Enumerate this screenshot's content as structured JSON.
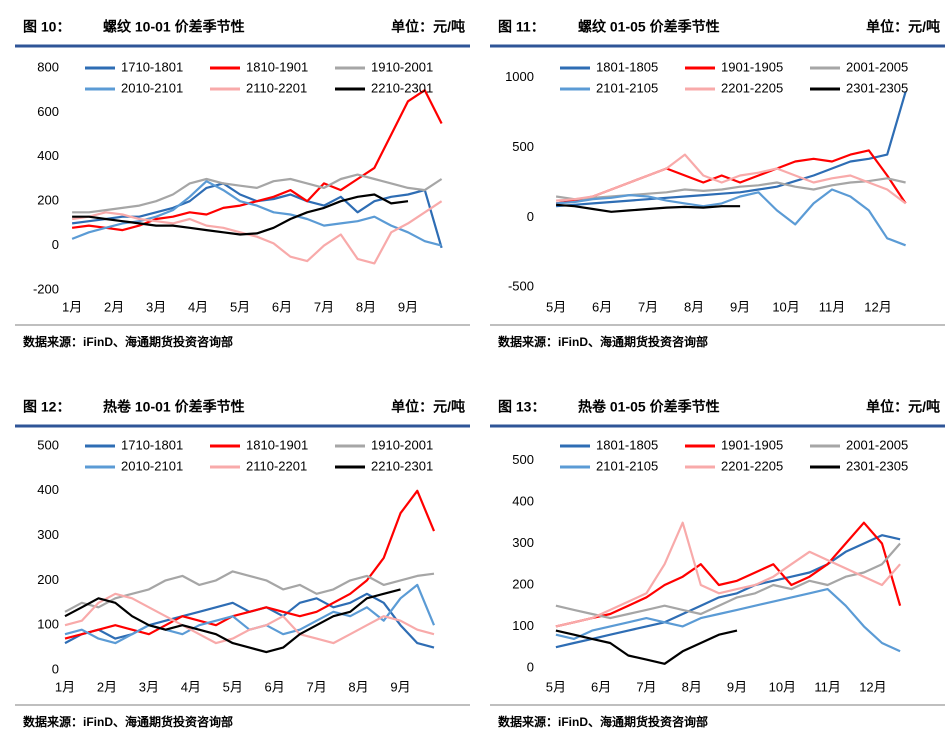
{
  "chart_data": [
    {
      "type": "line",
      "figure_label": "图 10：",
      "title": "螺纹 10-01 价差季节性",
      "unit": "单位：元/吨",
      "source": "数据来源：iFinD、海通期货投资咨询部",
      "x": [
        0,
        0.4,
        0.8,
        1.2,
        1.6,
        2,
        2.4,
        2.8,
        3.2,
        3.6,
        4,
        4.4,
        4.8,
        5.2,
        5.6,
        6,
        6.4,
        6.8,
        7.2,
        7.6,
        8,
        8.4,
        8.8
      ],
      "xlim": [
        -0.17,
        9.12
      ],
      "xticks": [
        {
          "value": 0,
          "label": "1月"
        },
        {
          "value": 1,
          "label": "2月"
        },
        {
          "value": 2,
          "label": "3月"
        },
        {
          "value": 3,
          "label": "4月"
        },
        {
          "value": 4,
          "label": "5月"
        },
        {
          "value": 5,
          "label": "6月"
        },
        {
          "value": 6,
          "label": "7月"
        },
        {
          "value": 7,
          "label": "8月"
        },
        {
          "value": 8,
          "label": "9月"
        }
      ],
      "ylim": [
        -200,
        800
      ],
      "yticks": [
        -200,
        0,
        200,
        400,
        600,
        800
      ],
      "series": [
        {
          "name": "1710-1801",
          "color": "#2e6db4",
          "values": [
            100,
            110,
            120,
            130,
            130,
            150,
            170,
            200,
            260,
            280,
            230,
            200,
            210,
            230,
            200,
            180,
            220,
            150,
            200,
            220,
            230,
            250,
            -10
          ]
        },
        {
          "name": "1810-1901",
          "color": "#ff0000",
          "values": [
            80,
            90,
            80,
            70,
            90,
            120,
            130,
            150,
            140,
            170,
            180,
            200,
            220,
            250,
            200,
            280,
            250,
            300,
            350,
            500,
            650,
            700,
            550
          ]
        },
        {
          "name": "1910-2001",
          "color": "#a6a6a6",
          "values": [
            150,
            150,
            160,
            170,
            180,
            200,
            230,
            280,
            300,
            280,
            270,
            260,
            290,
            300,
            280,
            260,
            300,
            320,
            300,
            280,
            260,
            250,
            300
          ]
        },
        {
          "name": "2010-2101",
          "color": "#5b9bd5",
          "values": [
            30,
            60,
            80,
            100,
            110,
            130,
            160,
            220,
            290,
            250,
            200,
            180,
            150,
            140,
            120,
            90,
            100,
            110,
            130,
            90,
            60,
            20,
            0
          ]
        },
        {
          "name": "2110-2201",
          "color": "#f8aaaa",
          "values": [
            120,
            130,
            150,
            140,
            120,
            110,
            100,
            120,
            90,
            80,
            60,
            40,
            10,
            -50,
            -70,
            0,
            50,
            -60,
            -80,
            60,
            100,
            150,
            200
          ]
        },
        {
          "name": "2210-2301",
          "color": "#000000",
          "values": [
            130,
            130,
            120,
            110,
            100,
            90,
            90,
            80,
            70,
            60,
            50,
            55,
            80,
            120,
            150,
            170,
            200,
            220,
            230,
            190,
            200,
            null,
            null
          ]
        }
      ]
    },
    {
      "type": "line",
      "figure_label": "图 11：",
      "title": "螺纹 01-05 价差季节性",
      "unit": "单位：元/吨",
      "source": "数据来源：iFinD、海通期货投资咨询部",
      "x": [
        0,
        0.4,
        0.8,
        1.2,
        1.6,
        2,
        2.4,
        2.8,
        3.2,
        3.6,
        4,
        4.4,
        4.8,
        5.2,
        5.6,
        6,
        6.4,
        6.8,
        7.2,
        7.6
      ],
      "xlim": [
        -0.35,
        8.13
      ],
      "xticks": [
        {
          "value": 0,
          "label": "5月"
        },
        {
          "value": 1,
          "label": "6月"
        },
        {
          "value": 2,
          "label": "7月"
        },
        {
          "value": 3,
          "label": "8月"
        },
        {
          "value": 4,
          "label": "9月"
        },
        {
          "value": 5,
          "label": "10月"
        },
        {
          "value": 6,
          "label": "11月"
        },
        {
          "value": 7,
          "label": "12月"
        }
      ],
      "ylim": [
        -520,
        1070
      ],
      "yticks": [
        -500,
        0,
        500,
        1000
      ],
      "series": [
        {
          "name": "1801-1805",
          "color": "#2e6db4",
          "values": [
            80,
            90,
            100,
            110,
            120,
            130,
            140,
            150,
            160,
            170,
            180,
            200,
            220,
            260,
            300,
            350,
            400,
            420,
            450,
            900
          ]
        },
        {
          "name": "1901-1905",
          "color": "#ff0000",
          "values": [
            100,
            120,
            150,
            200,
            250,
            300,
            350,
            300,
            250,
            300,
            250,
            300,
            350,
            400,
            420,
            400,
            450,
            480,
            300,
            100
          ]
        },
        {
          "name": "2001-2005",
          "color": "#a6a6a6",
          "values": [
            150,
            130,
            140,
            150,
            160,
            170,
            180,
            200,
            190,
            200,
            220,
            230,
            250,
            220,
            200,
            230,
            250,
            260,
            280,
            250
          ]
        },
        {
          "name": "2101-2105",
          "color": "#5b9bd5",
          "values": [
            100,
            110,
            130,
            140,
            160,
            150,
            120,
            100,
            80,
            100,
            150,
            180,
            50,
            -50,
            100,
            200,
            150,
            50,
            -150,
            -200
          ]
        },
        {
          "name": "2201-2205",
          "color": "#f8aaaa",
          "values": [
            120,
            130,
            150,
            200,
            250,
            300,
            350,
            450,
            300,
            250,
            300,
            320,
            350,
            300,
            250,
            280,
            300,
            250,
            200,
            100
          ]
        },
        {
          "name": "2301-2305",
          "color": "#000000",
          "values": [
            90,
            80,
            60,
            40,
            50,
            60,
            70,
            75,
            70,
            80,
            80,
            null,
            null,
            null,
            null,
            null,
            null,
            null,
            null,
            null
          ]
        }
      ]
    },
    {
      "type": "line",
      "figure_label": "图 12：",
      "title": "热卷 10-01 价差季节性",
      "unit": "单位：元/吨",
      "source": "数据来源：iFinD、海通期货投资咨询部",
      "x": [
        0,
        0.4,
        0.8,
        1.2,
        1.6,
        2,
        2.4,
        2.8,
        3.2,
        3.6,
        4,
        4.4,
        4.8,
        5.2,
        5.6,
        6,
        6.4,
        6.8,
        7.2,
        7.6,
        8,
        8.4,
        8.8
      ],
      "xlim": [
        0,
        9.3
      ],
      "xticks": [
        {
          "value": 0,
          "label": "1月"
        },
        {
          "value": 1,
          "label": "2月"
        },
        {
          "value": 2,
          "label": "3月"
        },
        {
          "value": 3,
          "label": "4月"
        },
        {
          "value": 4,
          "label": "5月"
        },
        {
          "value": 5,
          "label": "6月"
        },
        {
          "value": 6,
          "label": "7月"
        },
        {
          "value": 7,
          "label": "8月"
        },
        {
          "value": 8,
          "label": "9月"
        }
      ],
      "ylim": [
        0,
        500
      ],
      "yticks": [
        0,
        100,
        200,
        300,
        400,
        500
      ],
      "series": [
        {
          "name": "1710-1801",
          "color": "#2e6db4",
          "values": [
            60,
            80,
            90,
            70,
            80,
            100,
            110,
            120,
            130,
            140,
            150,
            130,
            140,
            120,
            150,
            160,
            140,
            150,
            170,
            150,
            100,
            60,
            50
          ]
        },
        {
          "name": "1810-1901",
          "color": "#ff0000",
          "values": [
            70,
            80,
            90,
            100,
            90,
            80,
            100,
            120,
            110,
            100,
            120,
            130,
            140,
            130,
            120,
            130,
            150,
            170,
            200,
            250,
            350,
            400,
            310
          ]
        },
        {
          "name": "1910-2001",
          "color": "#a6a6a6",
          "values": [
            130,
            150,
            140,
            160,
            170,
            180,
            200,
            210,
            190,
            200,
            220,
            210,
            200,
            180,
            190,
            170,
            180,
            200,
            210,
            190,
            200,
            210,
            215
          ]
        },
        {
          "name": "2010-2101",
          "color": "#5b9bd5",
          "values": [
            80,
            90,
            70,
            60,
            80,
            100,
            90,
            80,
            100,
            110,
            120,
            90,
            100,
            80,
            90,
            110,
            130,
            120,
            140,
            110,
            160,
            190,
            100
          ]
        },
        {
          "name": "2110-2201",
          "color": "#f8aaaa",
          "values": [
            100,
            110,
            150,
            170,
            160,
            140,
            120,
            100,
            80,
            60,
            70,
            90,
            100,
            120,
            80,
            70,
            60,
            80,
            100,
            120,
            110,
            90,
            80
          ]
        },
        {
          "name": "2210-2301",
          "color": "#000000",
          "values": [
            120,
            140,
            160,
            150,
            120,
            100,
            90,
            100,
            90,
            80,
            60,
            50,
            40,
            50,
            80,
            100,
            120,
            130,
            160,
            170,
            180,
            null,
            null
          ]
        }
      ]
    },
    {
      "type": "line",
      "figure_label": "图 13：",
      "title": "热卷 01-05 价差季节性",
      "unit": "单位：元/吨",
      "source": "数据来源：iFinD、海通期货投资咨询部",
      "x": [
        0,
        0.4,
        0.8,
        1.2,
        1.6,
        2,
        2.4,
        2.8,
        3.2,
        3.6,
        4,
        4.4,
        4.8,
        5.2,
        5.6,
        6,
        6.4,
        6.8,
        7.2,
        7.6
      ],
      "xlim": [
        -0.35,
        8.26
      ],
      "xticks": [
        {
          "value": 0,
          "label": "5月"
        },
        {
          "value": 1,
          "label": "6月"
        },
        {
          "value": 2,
          "label": "7月"
        },
        {
          "value": 3,
          "label": "8月"
        },
        {
          "value": 4,
          "label": "9月"
        },
        {
          "value": 5,
          "label": "10月"
        },
        {
          "value": 6,
          "label": "11月"
        },
        {
          "value": 7,
          "label": "12月"
        }
      ],
      "ylim": [
        -5,
        535
      ],
      "yticks": [
        0,
        100,
        200,
        300,
        400,
        500
      ],
      "series": [
        {
          "name": "1801-1805",
          "color": "#2e6db4",
          "values": [
            50,
            60,
            70,
            80,
            90,
            100,
            110,
            130,
            150,
            170,
            180,
            200,
            210,
            220,
            230,
            250,
            280,
            300,
            320,
            310
          ]
        },
        {
          "name": "1901-1905",
          "color": "#ff0000",
          "values": [
            100,
            110,
            120,
            130,
            150,
            170,
            200,
            220,
            250,
            200,
            210,
            230,
            250,
            200,
            220,
            250,
            300,
            350,
            300,
            150
          ]
        },
        {
          "name": "2001-2005",
          "color": "#a6a6a6",
          "values": [
            150,
            140,
            130,
            120,
            130,
            140,
            150,
            140,
            130,
            150,
            170,
            180,
            200,
            190,
            210,
            200,
            220,
            230,
            250,
            300
          ]
        },
        {
          "name": "2101-2105",
          "color": "#5b9bd5",
          "values": [
            80,
            70,
            90,
            100,
            110,
            120,
            110,
            100,
            120,
            130,
            140,
            150,
            160,
            170,
            180,
            190,
            150,
            100,
            60,
            40
          ]
        },
        {
          "name": "2201-2205",
          "color": "#f8aaaa",
          "values": [
            100,
            110,
            120,
            140,
            160,
            180,
            250,
            350,
            200,
            180,
            190,
            200,
            220,
            250,
            280,
            260,
            240,
            220,
            200,
            250
          ]
        },
        {
          "name": "2301-2305",
          "color": "#000000",
          "values": [
            90,
            80,
            70,
            60,
            30,
            20,
            10,
            40,
            60,
            80,
            90,
            null,
            null,
            null,
            null,
            null,
            null,
            null,
            null,
            null
          ]
        }
      ]
    }
  ]
}
